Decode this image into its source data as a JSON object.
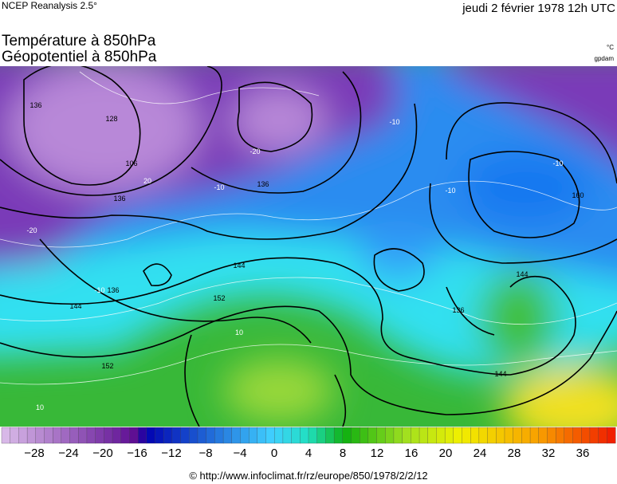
{
  "header": {
    "source": "NCEP Reanalysis 2.5°",
    "date": "jeudi 2 février 1978 12h UTC"
  },
  "titles": [
    "Température à 850hPa",
    "Géopotentiel à 850hPa"
  ],
  "units": [
    "°C",
    "gpdam"
  ],
  "map": {
    "contour_labels": [
      "136",
      "128",
      "106",
      "-20",
      "20",
      "-20",
      "-10",
      "136",
      "-10",
      "-10",
      "160",
      "-10",
      "136",
      "-10",
      "136",
      "144",
      "144",
      "152",
      "10",
      "152",
      "10",
      "144",
      "144",
      "136"
    ]
  },
  "colorbar": {
    "ticks": [
      "−28",
      "−24",
      "−20",
      "−16",
      "−12",
      "−8",
      "−4",
      "0",
      "4",
      "8",
      "12",
      "16",
      "20",
      "24",
      "28",
      "32",
      "36"
    ]
  },
  "footer": "© http://www.infoclimat.fr/rz/europe/850/1978/2/2/12"
}
